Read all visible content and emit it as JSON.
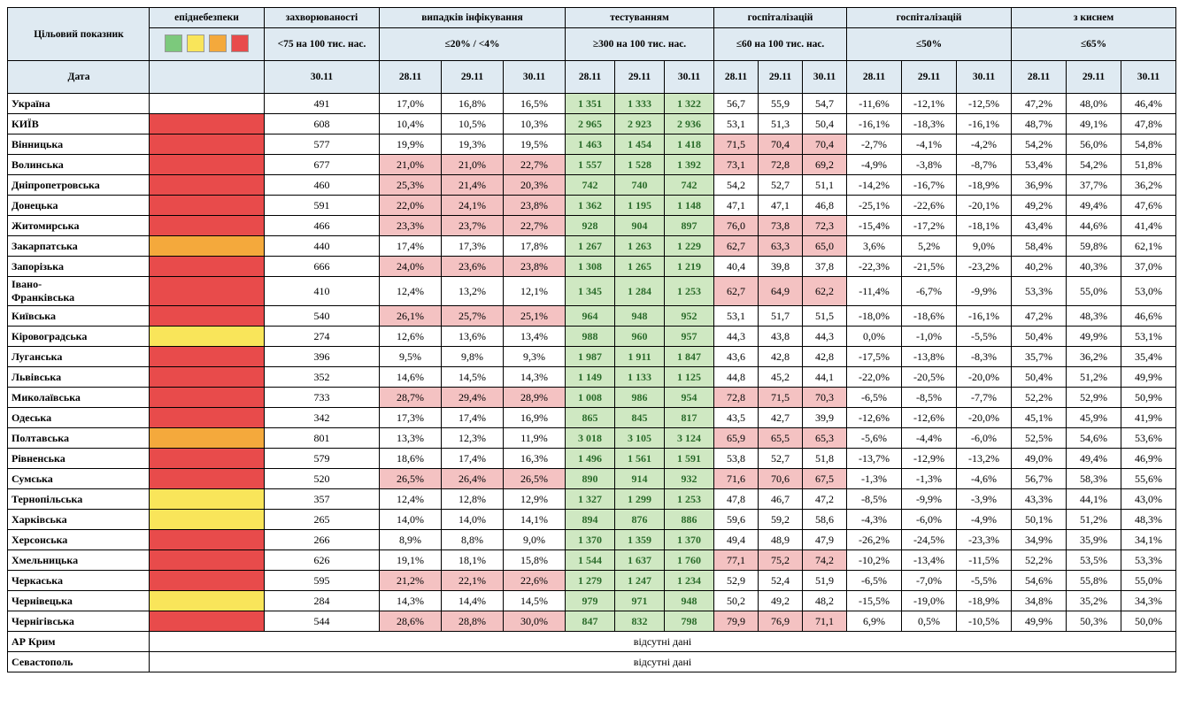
{
  "colors": {
    "header_bg": "#dfeaf2",
    "legend": [
      "#7cc97c",
      "#f9e55a",
      "#f4a93c",
      "#e84b4b"
    ],
    "danger": {
      "red": "#e84b4b",
      "orange": "#f4a93c",
      "yellow": "#f9e55a"
    },
    "cell_red": "#f4c2c2",
    "cell_green": "#cfe8c2"
  },
  "headers": {
    "top": [
      "епіднебезпеки",
      "захворюваності",
      "випадків інфікування",
      "тестуванням",
      "госпіталізацій",
      "госпіталізацій",
      "з киснем"
    ],
    "mid_label1": "Цільовий показник",
    "mid_label2": "Дата",
    "mid": [
      "",
      "<75 на 100 тис. нас.",
      "≤20% / <4%",
      "≥300 на 100 тис. нас.",
      "≤60 на 100 тис. нас.",
      "≤50%",
      "≤65%"
    ],
    "dates": [
      "",
      "30.11",
      "28.11",
      "29.11",
      "30.11",
      "28.11",
      "29.11",
      "30.11",
      "28.11",
      "29.11",
      "30.11",
      "28.11",
      "29.11",
      "30.11",
      "28.11",
      "29.11",
      "30.11"
    ]
  },
  "rows": [
    {
      "name": "Україна",
      "danger": "",
      "inc": "491",
      "inf": [
        "17,0%",
        "16,8%",
        "16,5%"
      ],
      "inf_c": [
        "",
        "",
        ""
      ],
      "test": [
        "1 351",
        "1 333",
        "1 322"
      ],
      "hosp": [
        "56,7",
        "55,9",
        "54,7"
      ],
      "hosp_c": [
        "",
        "",
        ""
      ],
      "hpct": [
        "-11,6%",
        "-12,1%",
        "-12,5%"
      ],
      "oxy": [
        "47,2%",
        "48,0%",
        "46,4%"
      ]
    },
    {
      "name": "КИЇВ",
      "danger": "red",
      "inc": "608",
      "inf": [
        "10,4%",
        "10,5%",
        "10,3%"
      ],
      "inf_c": [
        "",
        "",
        ""
      ],
      "test": [
        "2 965",
        "2 923",
        "2 936"
      ],
      "hosp": [
        "53,1",
        "51,3",
        "50,4"
      ],
      "hosp_c": [
        "",
        "",
        ""
      ],
      "hpct": [
        "-16,1%",
        "-18,3%",
        "-16,1%"
      ],
      "oxy": [
        "48,7%",
        "49,1%",
        "47,8%"
      ]
    },
    {
      "name": "Вінницька",
      "danger": "red",
      "inc": "577",
      "inf": [
        "19,9%",
        "19,3%",
        "19,5%"
      ],
      "inf_c": [
        "",
        "",
        ""
      ],
      "test": [
        "1 463",
        "1 454",
        "1 418"
      ],
      "hosp": [
        "71,5",
        "70,4",
        "70,4"
      ],
      "hosp_c": [
        "r",
        "r",
        "r"
      ],
      "hpct": [
        "-2,7%",
        "-4,1%",
        "-4,2%"
      ],
      "oxy": [
        "54,2%",
        "56,0%",
        "54,8%"
      ]
    },
    {
      "name": "Волинська",
      "danger": "red",
      "inc": "677",
      "inf": [
        "21,0%",
        "21,0%",
        "22,7%"
      ],
      "inf_c": [
        "r",
        "r",
        "r"
      ],
      "test": [
        "1 557",
        "1 528",
        "1 392"
      ],
      "hosp": [
        "73,1",
        "72,8",
        "69,2"
      ],
      "hosp_c": [
        "r",
        "r",
        "r"
      ],
      "hpct": [
        "-4,9%",
        "-3,8%",
        "-8,7%"
      ],
      "oxy": [
        "53,4%",
        "54,2%",
        "51,8%"
      ]
    },
    {
      "name": "Дніпропетровська",
      "danger": "red",
      "inc": "460",
      "inf": [
        "25,3%",
        "21,4%",
        "20,3%"
      ],
      "inf_c": [
        "r",
        "r",
        "r"
      ],
      "test": [
        "742",
        "740",
        "742"
      ],
      "hosp": [
        "54,2",
        "52,7",
        "51,1"
      ],
      "hosp_c": [
        "",
        "",
        ""
      ],
      "hpct": [
        "-14,2%",
        "-16,7%",
        "-18,9%"
      ],
      "oxy": [
        "36,9%",
        "37,7%",
        "36,2%"
      ]
    },
    {
      "name": "Донецька",
      "danger": "red",
      "inc": "591",
      "inf": [
        "22,0%",
        "24,1%",
        "23,8%"
      ],
      "inf_c": [
        "r",
        "r",
        "r"
      ],
      "test": [
        "1 362",
        "1 195",
        "1 148"
      ],
      "hosp": [
        "47,1",
        "47,1",
        "46,8"
      ],
      "hosp_c": [
        "",
        "",
        ""
      ],
      "hpct": [
        "-25,1%",
        "-22,6%",
        "-20,1%"
      ],
      "oxy": [
        "49,2%",
        "49,4%",
        "47,6%"
      ]
    },
    {
      "name": "Житомирська",
      "danger": "red",
      "inc": "466",
      "inf": [
        "23,3%",
        "23,7%",
        "22,7%"
      ],
      "inf_c": [
        "r",
        "r",
        "r"
      ],
      "test": [
        "928",
        "904",
        "897"
      ],
      "hosp": [
        "76,0",
        "73,8",
        "72,3"
      ],
      "hosp_c": [
        "r",
        "r",
        "r"
      ],
      "hpct": [
        "-15,4%",
        "-17,2%",
        "-18,1%"
      ],
      "oxy": [
        "43,4%",
        "44,6%",
        "41,4%"
      ]
    },
    {
      "name": "Закарпатська",
      "danger": "orange",
      "inc": "440",
      "inf": [
        "17,4%",
        "17,3%",
        "17,8%"
      ],
      "inf_c": [
        "",
        "",
        ""
      ],
      "test": [
        "1 267",
        "1 263",
        "1 229"
      ],
      "hosp": [
        "62,7",
        "63,3",
        "65,0"
      ],
      "hosp_c": [
        "r",
        "r",
        "r"
      ],
      "hpct": [
        "3,6%",
        "5,2%",
        "9,0%"
      ],
      "oxy": [
        "58,4%",
        "59,8%",
        "62,1%"
      ]
    },
    {
      "name": "Запорізька",
      "danger": "red",
      "inc": "666",
      "inf": [
        "24,0%",
        "23,6%",
        "23,8%"
      ],
      "inf_c": [
        "r",
        "r",
        "r"
      ],
      "test": [
        "1 308",
        "1 265",
        "1 219"
      ],
      "hosp": [
        "40,4",
        "39,8",
        "37,8"
      ],
      "hosp_c": [
        "",
        "",
        ""
      ],
      "hpct": [
        "-22,3%",
        "-21,5%",
        "-23,2%"
      ],
      "oxy": [
        "40,2%",
        "40,3%",
        "37,0%"
      ]
    },
    {
      "name": "Івано-\nФранківська",
      "danger": "red",
      "inc": "410",
      "inf": [
        "12,4%",
        "13,2%",
        "12,1%"
      ],
      "inf_c": [
        "",
        "",
        ""
      ],
      "test": [
        "1 345",
        "1 284",
        "1 253"
      ],
      "hosp": [
        "62,7",
        "64,9",
        "62,2"
      ],
      "hosp_c": [
        "r",
        "r",
        "r"
      ],
      "hpct": [
        "-11,4%",
        "-6,7%",
        "-9,9%"
      ],
      "oxy": [
        "53,3%",
        "55,0%",
        "53,0%"
      ]
    },
    {
      "name": "Київська",
      "danger": "red",
      "inc": "540",
      "inf": [
        "26,1%",
        "25,7%",
        "25,1%"
      ],
      "inf_c": [
        "r",
        "r",
        "r"
      ],
      "test": [
        "964",
        "948",
        "952"
      ],
      "hosp": [
        "53,1",
        "51,7",
        "51,5"
      ],
      "hosp_c": [
        "",
        "",
        ""
      ],
      "hpct": [
        "-18,0%",
        "-18,6%",
        "-16,1%"
      ],
      "oxy": [
        "47,2%",
        "48,3%",
        "46,6%"
      ]
    },
    {
      "name": "Кіровоградська",
      "danger": "yellow",
      "inc": "274",
      "inf": [
        "12,6%",
        "13,6%",
        "13,4%"
      ],
      "inf_c": [
        "",
        "",
        ""
      ],
      "test": [
        "988",
        "960",
        "957"
      ],
      "hosp": [
        "44,3",
        "43,8",
        "44,3"
      ],
      "hosp_c": [
        "",
        "",
        ""
      ],
      "hpct": [
        "0,0%",
        "-1,0%",
        "-5,5%"
      ],
      "oxy": [
        "50,4%",
        "49,9%",
        "53,1%"
      ]
    },
    {
      "name": "Луганська",
      "danger": "red",
      "inc": "396",
      "inf": [
        "9,5%",
        "9,8%",
        "9,3%"
      ],
      "inf_c": [
        "",
        "",
        ""
      ],
      "test": [
        "1 987",
        "1 911",
        "1 847"
      ],
      "hosp": [
        "43,6",
        "42,8",
        "42,8"
      ],
      "hosp_c": [
        "",
        "",
        ""
      ],
      "hpct": [
        "-17,5%",
        "-13,8%",
        "-8,3%"
      ],
      "oxy": [
        "35,7%",
        "36,2%",
        "35,4%"
      ]
    },
    {
      "name": "Львівська",
      "danger": "red",
      "inc": "352",
      "inf": [
        "14,6%",
        "14,5%",
        "14,3%"
      ],
      "inf_c": [
        "",
        "",
        ""
      ],
      "test": [
        "1 149",
        "1 133",
        "1 125"
      ],
      "hosp": [
        "44,8",
        "45,2",
        "44,1"
      ],
      "hosp_c": [
        "",
        "",
        ""
      ],
      "hpct": [
        "-22,0%",
        "-20,5%",
        "-20,0%"
      ],
      "oxy": [
        "50,4%",
        "51,2%",
        "49,9%"
      ]
    },
    {
      "name": "Миколаївська",
      "danger": "red",
      "inc": "733",
      "inf": [
        "28,7%",
        "29,4%",
        "28,9%"
      ],
      "inf_c": [
        "r",
        "r",
        "r"
      ],
      "test": [
        "1 008",
        "986",
        "954"
      ],
      "hosp": [
        "72,8",
        "71,5",
        "70,3"
      ],
      "hosp_c": [
        "r",
        "r",
        "r"
      ],
      "hpct": [
        "-6,5%",
        "-8,5%",
        "-7,7%"
      ],
      "oxy": [
        "52,2%",
        "52,9%",
        "50,9%"
      ]
    },
    {
      "name": "Одеська",
      "danger": "red",
      "inc": "342",
      "inf": [
        "17,3%",
        "17,4%",
        "16,9%"
      ],
      "inf_c": [
        "",
        "",
        ""
      ],
      "test": [
        "865",
        "845",
        "817"
      ],
      "hosp": [
        "43,5",
        "42,7",
        "39,9"
      ],
      "hosp_c": [
        "",
        "",
        ""
      ],
      "hpct": [
        "-12,6%",
        "-12,6%",
        "-20,0%"
      ],
      "oxy": [
        "45,1%",
        "45,9%",
        "41,9%"
      ]
    },
    {
      "name": "Полтавська",
      "danger": "orange",
      "inc": "801",
      "inf": [
        "13,3%",
        "12,3%",
        "11,9%"
      ],
      "inf_c": [
        "",
        "",
        ""
      ],
      "test": [
        "3 018",
        "3 105",
        "3 124"
      ],
      "hosp": [
        "65,9",
        "65,5",
        "65,3"
      ],
      "hosp_c": [
        "r",
        "r",
        "r"
      ],
      "hpct": [
        "-5,6%",
        "-4,4%",
        "-6,0%"
      ],
      "oxy": [
        "52,5%",
        "54,6%",
        "53,6%"
      ]
    },
    {
      "name": "Рівненська",
      "danger": "red",
      "inc": "579",
      "inf": [
        "18,6%",
        "17,4%",
        "16,3%"
      ],
      "inf_c": [
        "",
        "",
        ""
      ],
      "test": [
        "1 496",
        "1 561",
        "1 591"
      ],
      "hosp": [
        "53,8",
        "52,7",
        "51,8"
      ],
      "hosp_c": [
        "",
        "",
        ""
      ],
      "hpct": [
        "-13,7%",
        "-12,9%",
        "-13,2%"
      ],
      "oxy": [
        "49,0%",
        "49,4%",
        "46,9%"
      ]
    },
    {
      "name": "Сумська",
      "danger": "red",
      "inc": "520",
      "inf": [
        "26,5%",
        "26,4%",
        "26,5%"
      ],
      "inf_c": [
        "r",
        "r",
        "r"
      ],
      "test": [
        "890",
        "914",
        "932"
      ],
      "hosp": [
        "71,6",
        "70,6",
        "67,5"
      ],
      "hosp_c": [
        "r",
        "r",
        "r"
      ],
      "hpct": [
        "-1,3%",
        "-1,3%",
        "-4,6%"
      ],
      "oxy": [
        "56,7%",
        "58,3%",
        "55,6%"
      ]
    },
    {
      "name": "Тернопільська",
      "danger": "yellow",
      "inc": "357",
      "inf": [
        "12,4%",
        "12,8%",
        "12,9%"
      ],
      "inf_c": [
        "",
        "",
        ""
      ],
      "test": [
        "1 327",
        "1 299",
        "1 253"
      ],
      "hosp": [
        "47,8",
        "46,7",
        "47,2"
      ],
      "hosp_c": [
        "",
        "",
        ""
      ],
      "hpct": [
        "-8,5%",
        "-9,9%",
        "-3,9%"
      ],
      "oxy": [
        "43,3%",
        "44,1%",
        "43,0%"
      ]
    },
    {
      "name": "Харківська",
      "danger": "yellow",
      "inc": "265",
      "inf": [
        "14,0%",
        "14,0%",
        "14,1%"
      ],
      "inf_c": [
        "",
        "",
        ""
      ],
      "test": [
        "894",
        "876",
        "886"
      ],
      "hosp": [
        "59,6",
        "59,2",
        "58,6"
      ],
      "hosp_c": [
        "",
        "",
        ""
      ],
      "hpct": [
        "-4,3%",
        "-6,0%",
        "-4,9%"
      ],
      "oxy": [
        "50,1%",
        "51,2%",
        "48,3%"
      ]
    },
    {
      "name": "Херсонська",
      "danger": "red",
      "inc": "266",
      "inf": [
        "8,9%",
        "8,8%",
        "9,0%"
      ],
      "inf_c": [
        "",
        "",
        ""
      ],
      "test": [
        "1 370",
        "1 359",
        "1 370"
      ],
      "hosp": [
        "49,4",
        "48,9",
        "47,9"
      ],
      "hosp_c": [
        "",
        "",
        ""
      ],
      "hpct": [
        "-26,2%",
        "-24,5%",
        "-23,3%"
      ],
      "oxy": [
        "34,9%",
        "35,9%",
        "34,1%"
      ]
    },
    {
      "name": "Хмельницька",
      "danger": "red",
      "inc": "626",
      "inf": [
        "19,1%",
        "18,1%",
        "15,8%"
      ],
      "inf_c": [
        "",
        "",
        ""
      ],
      "test": [
        "1 544",
        "1 637",
        "1 760"
      ],
      "hosp": [
        "77,1",
        "75,2",
        "74,2"
      ],
      "hosp_c": [
        "r",
        "r",
        "r"
      ],
      "hpct": [
        "-10,2%",
        "-13,4%",
        "-11,5%"
      ],
      "oxy": [
        "52,2%",
        "53,5%",
        "53,3%"
      ]
    },
    {
      "name": "Черкаська",
      "danger": "red",
      "inc": "595",
      "inf": [
        "21,2%",
        "22,1%",
        "22,6%"
      ],
      "inf_c": [
        "r",
        "r",
        "r"
      ],
      "test": [
        "1 279",
        "1 247",
        "1 234"
      ],
      "hosp": [
        "52,9",
        "52,4",
        "51,9"
      ],
      "hosp_c": [
        "",
        "",
        ""
      ],
      "hpct": [
        "-6,5%",
        "-7,0%",
        "-5,5%"
      ],
      "oxy": [
        "54,6%",
        "55,8%",
        "55,0%"
      ]
    },
    {
      "name": "Чернівецька",
      "danger": "yellow",
      "inc": "284",
      "inf": [
        "14,3%",
        "14,4%",
        "14,5%"
      ],
      "inf_c": [
        "",
        "",
        ""
      ],
      "test": [
        "979",
        "971",
        "948"
      ],
      "hosp": [
        "50,2",
        "49,2",
        "48,2"
      ],
      "hosp_c": [
        "",
        "",
        ""
      ],
      "hpct": [
        "-15,5%",
        "-19,0%",
        "-18,9%"
      ],
      "oxy": [
        "34,8%",
        "35,2%",
        "34,3%"
      ]
    },
    {
      "name": "Чернігівська",
      "danger": "red",
      "inc": "544",
      "inf": [
        "28,6%",
        "28,8%",
        "30,0%"
      ],
      "inf_c": [
        "r",
        "r",
        "r"
      ],
      "test": [
        "847",
        "832",
        "798"
      ],
      "hosp": [
        "79,9",
        "76,9",
        "71,1"
      ],
      "hosp_c": [
        "r",
        "r",
        "r"
      ],
      "hpct": [
        "6,9%",
        "0,5%",
        "-10,5%"
      ],
      "oxy": [
        "49,9%",
        "50,3%",
        "50,0%"
      ]
    }
  ],
  "no_data_rows": [
    "АР Крим",
    "Севастополь"
  ],
  "no_data_text": "відсутні дані"
}
